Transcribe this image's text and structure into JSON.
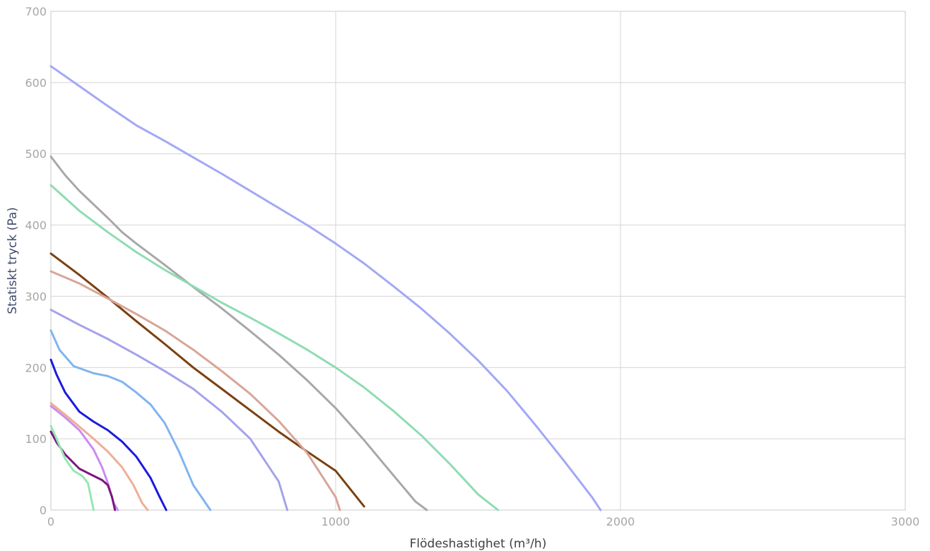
{
  "chart_data": {
    "type": "line",
    "xlabel": "Flödeshastighet (m³/h)",
    "ylabel": "Statiskt tryck (Pa)",
    "xlim": [
      0,
      3000
    ],
    "ylim": [
      0,
      700
    ],
    "x_ticks": [
      "0",
      "1000",
      "2000",
      "3000"
    ],
    "y_ticks": [
      "0",
      "100",
      "200",
      "300",
      "400",
      "500",
      "600",
      "700"
    ],
    "grid": true,
    "legend": "none",
    "series": [
      {
        "color": "#a3a8f5",
        "points": [
          [
            0,
            623
          ],
          [
            100,
            595
          ],
          [
            200,
            567
          ],
          [
            300,
            540
          ],
          [
            400,
            518
          ],
          [
            500,
            495
          ],
          [
            600,
            472
          ],
          [
            700,
            448
          ],
          [
            800,
            424
          ],
          [
            900,
            400
          ],
          [
            1000,
            374
          ],
          [
            1100,
            346
          ],
          [
            1200,
            315
          ],
          [
            1300,
            283
          ],
          [
            1400,
            248
          ],
          [
            1500,
            210
          ],
          [
            1600,
            168
          ],
          [
            1700,
            120
          ],
          [
            1800,
            70
          ],
          [
            1900,
            18
          ],
          [
            1930,
            0
          ]
        ]
      },
      {
        "color": "#a8a8a8",
        "points": [
          [
            0,
            496
          ],
          [
            50,
            470
          ],
          [
            100,
            448
          ],
          [
            200,
            410
          ],
          [
            250,
            390
          ],
          [
            300,
            374
          ],
          [
            400,
            344
          ],
          [
            500,
            313
          ],
          [
            600,
            283
          ],
          [
            700,
            251
          ],
          [
            800,
            218
          ],
          [
            900,
            182
          ],
          [
            1000,
            143
          ],
          [
            1100,
            98
          ],
          [
            1200,
            50
          ],
          [
            1280,
            12
          ],
          [
            1320,
            0
          ]
        ]
      },
      {
        "color": "#8fdcb2",
        "points": [
          [
            0,
            456
          ],
          [
            100,
            420
          ],
          [
            200,
            390
          ],
          [
            300,
            362
          ],
          [
            400,
            337
          ],
          [
            500,
            314
          ],
          [
            600,
            291
          ],
          [
            700,
            270
          ],
          [
            800,
            248
          ],
          [
            900,
            225
          ],
          [
            1000,
            200
          ],
          [
            1100,
            172
          ],
          [
            1200,
            140
          ],
          [
            1300,
            105
          ],
          [
            1400,
            65
          ],
          [
            1500,
            22
          ],
          [
            1570,
            0
          ]
        ]
      },
      {
        "color": "#7a4010",
        "points": [
          [
            0,
            360
          ],
          [
            100,
            330
          ],
          [
            200,
            298
          ],
          [
            300,
            265
          ],
          [
            400,
            233
          ],
          [
            500,
            200
          ],
          [
            600,
            170
          ],
          [
            700,
            140
          ],
          [
            800,
            110
          ],
          [
            900,
            82
          ],
          [
            1000,
            55
          ],
          [
            1100,
            5
          ]
        ]
      },
      {
        "color": "#d8a598",
        "points": [
          [
            0,
            335
          ],
          [
            100,
            318
          ],
          [
            200,
            297
          ],
          [
            300,
            275
          ],
          [
            400,
            252
          ],
          [
            500,
            225
          ],
          [
            600,
            195
          ],
          [
            700,
            163
          ],
          [
            800,
            125
          ],
          [
            900,
            80
          ],
          [
            1000,
            18
          ],
          [
            1015,
            0
          ]
        ]
      },
      {
        "color": "#a4a2ea",
        "points": [
          [
            0,
            281
          ],
          [
            100,
            260
          ],
          [
            200,
            240
          ],
          [
            300,
            218
          ],
          [
            400,
            195
          ],
          [
            500,
            170
          ],
          [
            600,
            138
          ],
          [
            700,
            100
          ],
          [
            800,
            40
          ],
          [
            830,
            0
          ]
        ]
      },
      {
        "color": "#80b4f0",
        "points": [
          [
            0,
            252
          ],
          [
            30,
            225
          ],
          [
            80,
            202
          ],
          [
            150,
            192
          ],
          [
            200,
            188
          ],
          [
            250,
            180
          ],
          [
            300,
            165
          ],
          [
            350,
            148
          ],
          [
            400,
            122
          ],
          [
            450,
            82
          ],
          [
            500,
            35
          ],
          [
            560,
            0
          ]
        ]
      },
      {
        "color": "#1a1ae0",
        "points": [
          [
            0,
            211
          ],
          [
            20,
            190
          ],
          [
            50,
            165
          ],
          [
            100,
            138
          ],
          [
            150,
            124
          ],
          [
            200,
            112
          ],
          [
            250,
            96
          ],
          [
            300,
            75
          ],
          [
            350,
            45
          ],
          [
            380,
            20
          ],
          [
            405,
            0
          ]
        ]
      },
      {
        "color": "#efae96",
        "points": [
          [
            0,
            150
          ],
          [
            25,
            142
          ],
          [
            50,
            134
          ],
          [
            100,
            117
          ],
          [
            150,
            100
          ],
          [
            200,
            82
          ],
          [
            250,
            60
          ],
          [
            290,
            35
          ],
          [
            320,
            10
          ],
          [
            340,
            0
          ]
        ]
      },
      {
        "color": "#c98cf0",
        "points": [
          [
            0,
            146
          ],
          [
            25,
            138
          ],
          [
            50,
            130
          ],
          [
            100,
            112
          ],
          [
            150,
            85
          ],
          [
            180,
            60
          ],
          [
            200,
            38
          ],
          [
            220,
            10
          ],
          [
            235,
            0
          ]
        ]
      },
      {
        "color": "#7c1580",
        "points": [
          [
            0,
            110
          ],
          [
            20,
            95
          ],
          [
            50,
            78
          ],
          [
            100,
            58
          ],
          [
            150,
            48
          ],
          [
            180,
            42
          ],
          [
            200,
            35
          ],
          [
            215,
            18
          ],
          [
            225,
            0
          ]
        ]
      },
      {
        "color": "#93e8b3",
        "points": [
          [
            0,
            118
          ],
          [
            20,
            100
          ],
          [
            50,
            72
          ],
          [
            80,
            55
          ],
          [
            110,
            48
          ],
          [
            130,
            38
          ],
          [
            145,
            10
          ],
          [
            150,
            0
          ]
        ]
      }
    ]
  }
}
